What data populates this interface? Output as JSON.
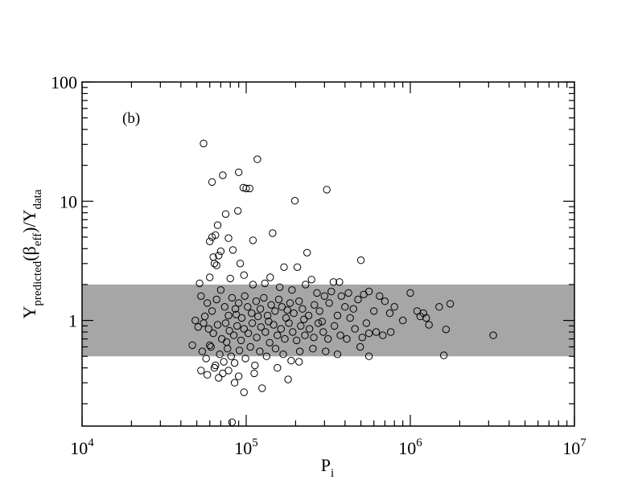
{
  "chart_data": {
    "type": "scatter",
    "title": "",
    "panel_label": "(b)",
    "xlabel": {
      "main": "P",
      "sub": "i"
    },
    "ylabel": {
      "parts": [
        {
          "t": "Y",
          "s": "n"
        },
        {
          "t": "predicted",
          "s": "sub"
        },
        {
          "t": "(β",
          "s": "n"
        },
        {
          "t": "eff",
          "s": "sub"
        },
        {
          "t": ")/Y",
          "s": "n"
        },
        {
          "t": "data",
          "s": "sub"
        }
      ]
    },
    "x_scale": "log",
    "y_scale": "log",
    "xlim": [
      10000,
      10000000
    ],
    "ylim": [
      0.13,
      100
    ],
    "x_ticks": [
      {
        "value": 10000,
        "base": "10",
        "exp": "4"
      },
      {
        "value": 100000,
        "base": "10",
        "exp": "5"
      },
      {
        "value": 1000000,
        "base": "10",
        "exp": "6"
      },
      {
        "value": 10000000,
        "base": "10",
        "exp": "7"
      }
    ],
    "y_ticks": [
      {
        "value": 1,
        "label": "1"
      },
      {
        "value": 10,
        "label": "10"
      },
      {
        "value": 100,
        "label": "100"
      }
    ],
    "grid": false,
    "band": {
      "y0": 0.5,
      "y1": 2.0,
      "color": "#a6a6a6"
    },
    "marker": {
      "shape": "open-circle",
      "color": "#000000"
    },
    "points": [
      [
        55000,
        30.5
      ],
      [
        62000,
        14.5
      ],
      [
        72000,
        16.5
      ],
      [
        90000,
        17.5
      ],
      [
        117000,
        22.5
      ],
      [
        100000,
        12.8
      ],
      [
        96000,
        13.0
      ],
      [
        89000,
        8.3
      ],
      [
        75000,
        7.8
      ],
      [
        67000,
        6.3
      ],
      [
        105000,
        12.8
      ],
      [
        198000,
        10.1
      ],
      [
        310000,
        12.5
      ],
      [
        145000,
        5.4
      ],
      [
        110000,
        4.7
      ],
      [
        235000,
        3.7
      ],
      [
        60000,
        4.6
      ],
      [
        62000,
        5.0
      ],
      [
        65000,
        5.2
      ],
      [
        78000,
        4.9
      ],
      [
        83000,
        3.9
      ],
      [
        500000,
        3.2
      ],
      [
        68000,
        3.5
      ],
      [
        92000,
        3.0
      ],
      [
        63000,
        3.4
      ],
      [
        70000,
        3.8
      ],
      [
        170000,
        2.8
      ],
      [
        205000,
        2.8
      ],
      [
        64000,
        3.0
      ],
      [
        66000,
        2.9
      ],
      [
        97000,
        2.4
      ],
      [
        140000,
        2.3
      ],
      [
        250000,
        2.2
      ],
      [
        340000,
        2.1
      ],
      [
        370000,
        2.1
      ],
      [
        52000,
        2.05
      ],
      [
        60000,
        2.3
      ],
      [
        80000,
        2.25
      ],
      [
        110000,
        2.0
      ],
      [
        130000,
        2.05
      ],
      [
        160000,
        1.9
      ],
      [
        190000,
        1.8
      ],
      [
        230000,
        2.0
      ],
      [
        270000,
        1.7
      ],
      [
        300000,
        1.6
      ],
      [
        330000,
        1.75
      ],
      [
        380000,
        1.6
      ],
      [
        420000,
        1.7
      ],
      [
        480000,
        1.5
      ],
      [
        520000,
        1.65
      ],
      [
        560000,
        1.75
      ],
      [
        650000,
        1.6
      ],
      [
        700000,
        1.45
      ],
      [
        800000,
        1.3
      ],
      [
        1000000,
        1.7
      ],
      [
        1100000,
        1.2
      ],
      [
        1200000,
        1.15
      ],
      [
        1250000,
        1.05
      ],
      [
        1500000,
        1.3
      ],
      [
        1750000,
        1.38
      ],
      [
        53000,
        1.6
      ],
      [
        58000,
        1.4
      ],
      [
        62000,
        1.2
      ],
      [
        66000,
        1.5
      ],
      [
        70000,
        1.8
      ],
      [
        74000,
        1.3
      ],
      [
        78000,
        1.1
      ],
      [
        82000,
        1.55
      ],
      [
        86000,
        1.25
      ],
      [
        90000,
        1.4
      ],
      [
        94000,
        1.05
      ],
      [
        98000,
        1.6
      ],
      [
        102000,
        1.3
      ],
      [
        108000,
        1.15
      ],
      [
        115000,
        1.45
      ],
      [
        122000,
        1.25
      ],
      [
        128000,
        1.55
      ],
      [
        135000,
        1.1
      ],
      [
        142000,
        1.35
      ],
      [
        150000,
        1.2
      ],
      [
        158000,
        1.5
      ],
      [
        165000,
        1.3
      ],
      [
        175000,
        1.05
      ],
      [
        185000,
        1.4
      ],
      [
        195000,
        1.15
      ],
      [
        210000,
        1.45
      ],
      [
        220000,
        1.25
      ],
      [
        240000,
        1.1
      ],
      [
        260000,
        1.35
      ],
      [
        280000,
        1.2
      ],
      [
        320000,
        1.4
      ],
      [
        360000,
        1.1
      ],
      [
        400000,
        1.3
      ],
      [
        450000,
        1.25
      ],
      [
        600000,
        1.2
      ],
      [
        750000,
        1.15
      ],
      [
        900000,
        1.0
      ],
      [
        1300000,
        0.92
      ],
      [
        49000,
        1.0
      ],
      [
        47000,
        0.62
      ],
      [
        51000,
        0.88
      ],
      [
        55000,
        0.95
      ],
      [
        59000,
        0.85
      ],
      [
        63000,
        0.78
      ],
      [
        67000,
        0.92
      ],
      [
        71000,
        0.7
      ],
      [
        75000,
        0.95
      ],
      [
        79000,
        0.82
      ],
      [
        84000,
        0.75
      ],
      [
        88000,
        0.9
      ],
      [
        93000,
        0.68
      ],
      [
        97000,
        0.85
      ],
      [
        103000,
        0.78
      ],
      [
        109000,
        0.95
      ],
      [
        116000,
        0.72
      ],
      [
        123000,
        0.88
      ],
      [
        131000,
        0.8
      ],
      [
        139000,
        0.65
      ],
      [
        147000,
        0.92
      ],
      [
        155000,
        0.75
      ],
      [
        163000,
        0.85
      ],
      [
        172000,
        0.7
      ],
      [
        182000,
        0.95
      ],
      [
        192000,
        0.8
      ],
      [
        203000,
        0.68
      ],
      [
        215000,
        0.9
      ],
      [
        228000,
        0.75
      ],
      [
        243000,
        0.85
      ],
      [
        258000,
        0.72
      ],
      [
        275000,
        0.95
      ],
      [
        295000,
        0.8
      ],
      [
        315000,
        0.7
      ],
      [
        345000,
        0.9
      ],
      [
        375000,
        0.75
      ],
      [
        410000,
        0.7
      ],
      [
        460000,
        0.85
      ],
      [
        510000,
        0.72
      ],
      [
        560000,
        0.78
      ],
      [
        620000,
        0.8
      ],
      [
        680000,
        0.75
      ],
      [
        760000,
        0.8
      ],
      [
        1650000,
        0.84
      ],
      [
        3200000,
        0.75
      ],
      [
        54000,
        0.55
      ],
      [
        57000,
        0.48
      ],
      [
        61000,
        0.6
      ],
      [
        65000,
        0.42
      ],
      [
        69000,
        0.52
      ],
      [
        73000,
        0.45
      ],
      [
        77000,
        0.58
      ],
      [
        81000,
        0.5
      ],
      [
        85000,
        0.44
      ],
      [
        91000,
        0.56
      ],
      [
        99000,
        0.48
      ],
      [
        106000,
        0.6
      ],
      [
        113000,
        0.42
      ],
      [
        121000,
        0.55
      ],
      [
        133000,
        0.5
      ],
      [
        151000,
        0.58
      ],
      [
        168000,
        0.52
      ],
      [
        188000,
        0.46
      ],
      [
        212000,
        0.55
      ],
      [
        255000,
        0.58
      ],
      [
        305000,
        0.55
      ],
      [
        360000,
        0.52
      ],
      [
        495000,
        0.6
      ],
      [
        560000,
        0.5
      ],
      [
        1600000,
        0.51
      ],
      [
        53000,
        0.38
      ],
      [
        58000,
        0.35
      ],
      [
        64000,
        0.4
      ],
      [
        68000,
        0.33
      ],
      [
        72000,
        0.36
      ],
      [
        78000,
        0.38
      ],
      [
        85000,
        0.3
      ],
      [
        90000,
        0.34
      ],
      [
        97000,
        0.25
      ],
      [
        112000,
        0.36
      ],
      [
        125000,
        0.27
      ],
      [
        155000,
        0.4
      ],
      [
        180000,
        0.32
      ],
      [
        210000,
        0.45
      ],
      [
        82000,
        0.14
      ],
      [
        60000,
        0.62
      ],
      [
        76000,
        0.66
      ],
      [
        87000,
        1.12
      ],
      [
        118000,
        1.08
      ],
      [
        137000,
        0.98
      ],
      [
        178000,
        1.22
      ],
      [
        225000,
        1.02
      ],
      [
        290000,
        0.98
      ],
      [
        430000,
        1.05
      ],
      [
        540000,
        0.95
      ],
      [
        1150000,
        1.08
      ],
      [
        56000,
        1.08
      ]
    ]
  }
}
